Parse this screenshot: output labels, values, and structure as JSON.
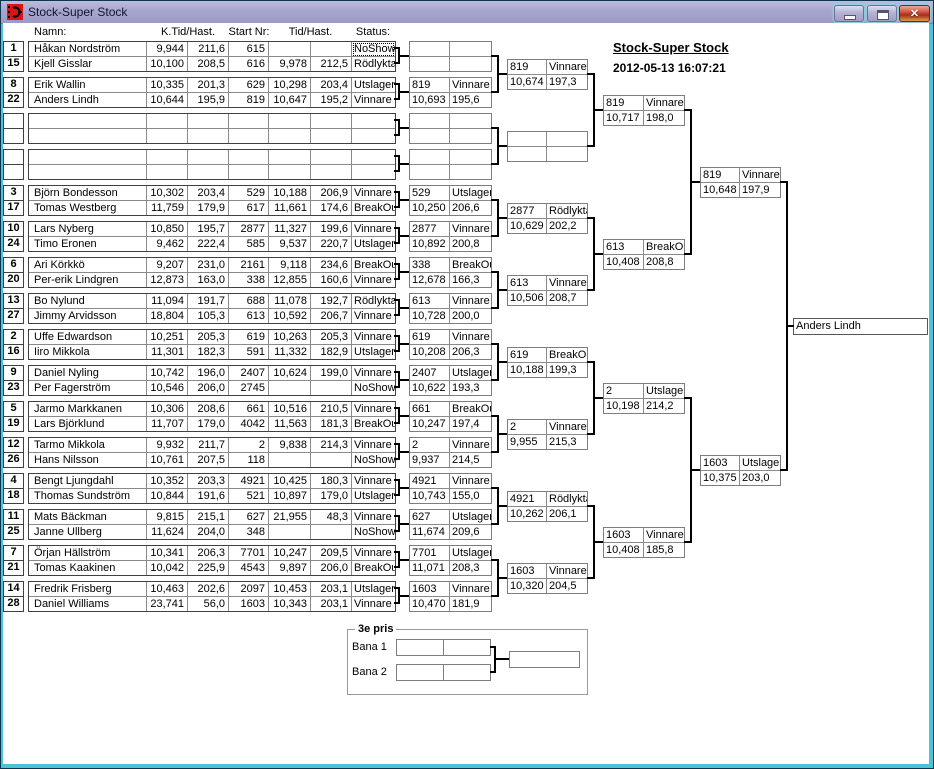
{
  "window": {
    "title": "Stock-Super Stock"
  },
  "heading": {
    "title": "Stock-Super Stock",
    "datetime": "2012-05-13 16:07:21"
  },
  "header": {
    "columns": [
      "Namn:",
      "K.Tid/Hast.",
      "Start Nr:",
      "Tid/Hast.",
      "Status:"
    ]
  },
  "pairs": [
    {
      "rows": [
        {
          "no": "1",
          "name": "Håkan Nordström",
          "ktid": "9,944",
          "khast": "211,6",
          "start": "615",
          "tid": "",
          "hast": "",
          "status": "NoShow",
          "focused": true
        },
        {
          "no": "15",
          "name": "Kjell Gisslar",
          "ktid": "10,100",
          "khast": "208,5",
          "start": "616",
          "tid": "9,978",
          "hast": "212,5",
          "status": "Rödlykta"
        }
      ]
    },
    {
      "rows": [
        {
          "no": "8",
          "name": "Erik Wallin",
          "ktid": "10,335",
          "khast": "201,3",
          "start": "629",
          "tid": "10,298",
          "hast": "203,4",
          "status": "Utslagen"
        },
        {
          "no": "22",
          "name": "Anders Lindh",
          "ktid": "10,644",
          "khast": "195,9",
          "start": "819",
          "tid": "10,647",
          "hast": "195,2",
          "status": "Vinnare"
        }
      ]
    },
    {
      "rows": [
        {
          "no": "",
          "name": "",
          "ktid": "",
          "khast": "",
          "start": "",
          "tid": "",
          "hast": "",
          "status": ""
        },
        {
          "no": "",
          "name": "",
          "ktid": "",
          "khast": "",
          "start": "",
          "tid": "",
          "hast": "",
          "status": ""
        }
      ]
    },
    {
      "rows": [
        {
          "no": "",
          "name": "",
          "ktid": "",
          "khast": "",
          "start": "",
          "tid": "",
          "hast": "",
          "status": ""
        },
        {
          "no": "",
          "name": "",
          "ktid": "",
          "khast": "",
          "start": "",
          "tid": "",
          "hast": "",
          "status": ""
        }
      ]
    },
    {
      "rows": [
        {
          "no": "3",
          "name": "Björn Bondesson",
          "ktid": "10,302",
          "khast": "203,4",
          "start": "529",
          "tid": "10,188",
          "hast": "206,9",
          "status": "Vinnare"
        },
        {
          "no": "17",
          "name": "Tomas Westberg",
          "ktid": "11,759",
          "khast": "179,9",
          "start": "617",
          "tid": "11,661",
          "hast": "174,6",
          "status": "BreakOut"
        }
      ]
    },
    {
      "rows": [
        {
          "no": "10",
          "name": "Lars Nyberg",
          "ktid": "10,850",
          "khast": "195,7",
          "start": "2877",
          "tid": "11,327",
          "hast": "199,6",
          "status": "Vinnare"
        },
        {
          "no": "24",
          "name": "Timo Eronen",
          "ktid": "9,462",
          "khast": "222,4",
          "start": "585",
          "tid": "9,537",
          "hast": "220,7",
          "status": "Utslagen"
        }
      ]
    },
    {
      "rows": [
        {
          "no": "6",
          "name": "Ari Körkkö",
          "ktid": "9,207",
          "khast": "231,0",
          "start": "2161",
          "tid": "9,118",
          "hast": "234,6",
          "status": "BreakOut"
        },
        {
          "no": "20",
          "name": "Per-erik Lindgren",
          "ktid": "12,873",
          "khast": "163,0",
          "start": "338",
          "tid": "12,855",
          "hast": "160,6",
          "status": "Vinnare"
        }
      ]
    },
    {
      "rows": [
        {
          "no": "13",
          "name": "Bo Nylund",
          "ktid": "11,094",
          "khast": "191,7",
          "start": "688",
          "tid": "11,078",
          "hast": "192,7",
          "status": "Rödlykta"
        },
        {
          "no": "27",
          "name": "Jimmy Arvidsson",
          "ktid": "18,804",
          "khast": "105,3",
          "start": "613",
          "tid": "10,592",
          "hast": "206,7",
          "status": "Vinnare"
        }
      ]
    },
    {
      "rows": [
        {
          "no": "2",
          "name": "Uffe Edwardson",
          "ktid": "10,251",
          "khast": "205,3",
          "start": "619",
          "tid": "10,263",
          "hast": "205,3",
          "status": "Vinnare"
        },
        {
          "no": "16",
          "name": "Iiro Mikkola",
          "ktid": "11,301",
          "khast": "182,3",
          "start": "591",
          "tid": "11,332",
          "hast": "182,9",
          "status": "Utslagen"
        }
      ]
    },
    {
      "rows": [
        {
          "no": "9",
          "name": "Daniel Nyling",
          "ktid": "10,742",
          "khast": "196,0",
          "start": "2407",
          "tid": "10,624",
          "hast": "199,0",
          "status": "Vinnare"
        },
        {
          "no": "23",
          "name": "Per Fagerström",
          "ktid": "10,546",
          "khast": "206,0",
          "start": "2745",
          "tid": "",
          "hast": "",
          "status": "NoShow"
        }
      ]
    },
    {
      "rows": [
        {
          "no": "5",
          "name": "Jarmo Markkanen",
          "ktid": "10,306",
          "khast": "208,6",
          "start": "661",
          "tid": "10,516",
          "hast": "210,5",
          "status": "Vinnare"
        },
        {
          "no": "19",
          "name": "Lars Björklund",
          "ktid": "11,707",
          "khast": "179,0",
          "start": "4042",
          "tid": "11,563",
          "hast": "181,3",
          "status": "BreakOut"
        }
      ]
    },
    {
      "rows": [
        {
          "no": "12",
          "name": "Tarmo Mikkola",
          "ktid": "9,932",
          "khast": "211,7",
          "start": "2",
          "tid": "9,838",
          "hast": "214,3",
          "status": "Vinnare"
        },
        {
          "no": "26",
          "name": "Hans Nilsson",
          "ktid": "10,761",
          "khast": "207,5",
          "start": "118",
          "tid": "",
          "hast": "",
          "status": "NoShow"
        }
      ]
    },
    {
      "rows": [
        {
          "no": "4",
          "name": "Bengt Ljungdahl",
          "ktid": "10,352",
          "khast": "203,3",
          "start": "4921",
          "tid": "10,425",
          "hast": "180,3",
          "status": "Vinnare"
        },
        {
          "no": "18",
          "name": "Thomas Sundström",
          "ktid": "10,844",
          "khast": "191,6",
          "start": "521",
          "tid": "10,897",
          "hast": "179,0",
          "status": "Utslagen"
        }
      ]
    },
    {
      "rows": [
        {
          "no": "11",
          "name": "Mats Bäckman",
          "ktid": "9,815",
          "khast": "215,1",
          "start": "627",
          "tid": "21,955",
          "hast": "48,3",
          "status": "Vinnare"
        },
        {
          "no": "25",
          "name": "Janne Ullberg",
          "ktid": "11,624",
          "khast": "204,0",
          "start": "348",
          "tid": "",
          "hast": "",
          "status": "NoShow"
        }
      ]
    },
    {
      "rows": [
        {
          "no": "7",
          "name": "Örjan Hällström",
          "ktid": "10,341",
          "khast": "206,3",
          "start": "7701",
          "tid": "10,247",
          "hast": "209,5",
          "status": "Vinnare"
        },
        {
          "no": "21",
          "name": "Tomas Kaakinen",
          "ktid": "10,042",
          "khast": "225,9",
          "start": "4543",
          "tid": "9,897",
          "hast": "206,0",
          "status": "BreakOut"
        }
      ]
    },
    {
      "rows": [
        {
          "no": "14",
          "name": "Fredrik Frisberg",
          "ktid": "10,463",
          "khast": "202,6",
          "start": "2097",
          "tid": "10,453",
          "hast": "203,1",
          "status": "Utslagen"
        },
        {
          "no": "28",
          "name": "Daniel Williams",
          "ktid": "23,741",
          "khast": "56,0",
          "start": "1603",
          "tid": "10,343",
          "hast": "203,1",
          "status": "Vinnare"
        }
      ]
    }
  ],
  "round2": [
    {
      "start": "",
      "status": "",
      "tid": "",
      "hast": ""
    },
    {
      "start": "819",
      "status": "Vinnare",
      "tid": "10,693",
      "hast": "195,6"
    },
    {
      "start": "",
      "status": "",
      "tid": "",
      "hast": ""
    },
    {
      "start": "",
      "status": "",
      "tid": "",
      "hast": ""
    },
    {
      "start": "529",
      "status": "Utslagen",
      "tid": "10,250",
      "hast": "206,6"
    },
    {
      "start": "2877",
      "status": "Vinnare",
      "tid": "10,892",
      "hast": "200,8"
    },
    {
      "start": "338",
      "status": "BreakOut",
      "tid": "12,678",
      "hast": "166,3"
    },
    {
      "start": "613",
      "status": "Vinnare",
      "tid": "10,728",
      "hast": "200,0"
    },
    {
      "start": "619",
      "status": "Vinnare",
      "tid": "10,208",
      "hast": "206,3"
    },
    {
      "start": "2407",
      "status": "Utslagen",
      "tid": "10,622",
      "hast": "193,3"
    },
    {
      "start": "661",
      "status": "BreakOut",
      "tid": "10,247",
      "hast": "197,4"
    },
    {
      "start": "2",
      "status": "Vinnare",
      "tid": "9,937",
      "hast": "214,5"
    },
    {
      "start": "4921",
      "status": "Vinnare",
      "tid": "10,743",
      "hast": "155,0"
    },
    {
      "start": "627",
      "status": "Utslagen",
      "tid": "11,674",
      "hast": "209,6"
    },
    {
      "start": "7701",
      "status": "Utslagen",
      "tid": "11,071",
      "hast": "208,3"
    },
    {
      "start": "1603",
      "status": "Vinnare",
      "tid": "10,470",
      "hast": "181,9"
    }
  ],
  "round3": [
    {
      "start": "819",
      "status": "Vinnare",
      "tid": "10,674",
      "hast": "197,3"
    },
    {
      "start": "",
      "status": "",
      "tid": "",
      "hast": ""
    },
    {
      "start": "2877",
      "status": "Rödlykta",
      "tid": "10,629",
      "hast": "202,2"
    },
    {
      "start": "613",
      "status": "Vinnare",
      "tid": "10,506",
      "hast": "208,7"
    },
    {
      "start": "619",
      "status": "BreakOut",
      "tid": "10,188",
      "hast": "199,3"
    },
    {
      "start": "2",
      "status": "Vinnare",
      "tid": "9,955",
      "hast": "215,3"
    },
    {
      "start": "4921",
      "status": "Rödlykta",
      "tid": "10,262",
      "hast": "206,1"
    },
    {
      "start": "1603",
      "status": "Vinnare",
      "tid": "10,320",
      "hast": "204,5"
    }
  ],
  "round4": [
    {
      "start": "819",
      "status": "Vinnare",
      "tid": "10,717",
      "hast": "198,0"
    },
    {
      "start": "613",
      "status": "BreakOut",
      "tid": "10,408",
      "hast": "208,8"
    },
    {
      "start": "2",
      "status": "Utslagen",
      "tid": "10,198",
      "hast": "214,2"
    },
    {
      "start": "1603",
      "status": "Vinnare",
      "tid": "10,408",
      "hast": "185,8"
    }
  ],
  "round5": [
    {
      "start": "819",
      "status": "Vinnare",
      "tid": "10,648",
      "hast": "197,9"
    },
    {
      "start": "1603",
      "status": "Utslagen",
      "tid": "10,375",
      "hast": "203,0"
    }
  ],
  "winner": {
    "name": "Anders Lindh"
  },
  "third": {
    "title": "3e pris",
    "lane1": "Bana 1",
    "lane2": "Bana 2"
  }
}
